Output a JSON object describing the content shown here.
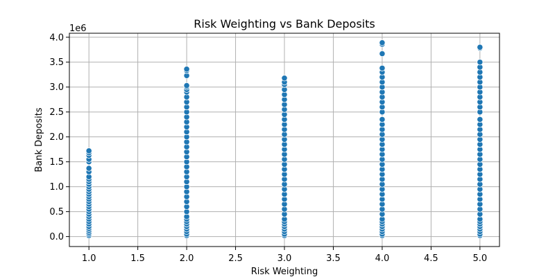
{
  "chart_data": {
    "type": "scatter",
    "title": "Risk Weighting vs Bank Deposits",
    "xlabel": "Risk Weighting",
    "ylabel": "Bank Deposits",
    "y_offset_label": "1e6",
    "xlim": [
      0.8,
      5.2
    ],
    "ylim": [
      -0.2,
      4.08
    ],
    "xticks": [
      "1.0",
      "1.5",
      "2.0",
      "2.5",
      "3.0",
      "3.5",
      "4.0",
      "4.5",
      "5.0"
    ],
    "xtick_values": [
      1.0,
      1.5,
      2.0,
      2.5,
      3.0,
      3.5,
      4.0,
      4.5,
      5.0
    ],
    "yticks": [
      "0.0",
      "0.5",
      "1.0",
      "1.5",
      "2.0",
      "2.5",
      "3.0",
      "3.5",
      "4.0"
    ],
    "ytick_values": [
      0.0,
      0.5,
      1.0,
      1.5,
      2.0,
      2.5,
      3.0,
      3.5,
      4.0
    ],
    "grid": true,
    "marker_color": "#1f77b4",
    "series": [
      {
        "x": 1.0,
        "values": [
          0.02,
          0.05,
          0.08,
          0.12,
          0.16,
          0.2,
          0.25,
          0.3,
          0.35,
          0.4,
          0.45,
          0.5,
          0.55,
          0.6,
          0.65,
          0.7,
          0.75,
          0.8,
          0.85,
          0.9,
          0.95,
          1.0,
          1.05,
          1.1,
          1.15,
          1.2,
          1.3,
          1.37,
          1.5,
          1.55,
          1.63,
          1.68,
          1.72
        ]
      },
      {
        "x": 2.0,
        "values": [
          0.02,
          0.05,
          0.1,
          0.15,
          0.2,
          0.25,
          0.3,
          0.35,
          0.4,
          0.5,
          0.6,
          0.7,
          0.8,
          0.9,
          1.0,
          1.1,
          1.2,
          1.3,
          1.4,
          1.5,
          1.6,
          1.7,
          1.8,
          1.9,
          2.0,
          2.1,
          2.2,
          2.3,
          2.4,
          2.5,
          2.6,
          2.7,
          2.8,
          2.9,
          2.95,
          3.0,
          3.03,
          3.23,
          3.33,
          3.36
        ]
      },
      {
        "x": 3.0,
        "values": [
          0.02,
          0.05,
          0.1,
          0.15,
          0.2,
          0.25,
          0.3,
          0.35,
          0.45,
          0.55,
          0.65,
          0.75,
          0.85,
          0.95,
          1.05,
          1.15,
          1.25,
          1.35,
          1.45,
          1.55,
          1.65,
          1.75,
          1.85,
          1.95,
          2.05,
          2.15,
          2.25,
          2.35,
          2.45,
          2.55,
          2.65,
          2.75,
          2.85,
          2.95,
          3.05,
          3.1,
          3.18
        ]
      },
      {
        "x": 4.0,
        "values": [
          0.02,
          0.05,
          0.1,
          0.15,
          0.2,
          0.25,
          0.3,
          0.35,
          0.45,
          0.55,
          0.65,
          0.75,
          0.85,
          0.95,
          1.05,
          1.15,
          1.25,
          1.35,
          1.45,
          1.55,
          1.65,
          1.75,
          1.85,
          1.95,
          2.05,
          2.15,
          2.25,
          2.35,
          2.5,
          2.6,
          2.7,
          2.8,
          2.9,
          3.0,
          3.1,
          3.2,
          3.3,
          3.38,
          3.67,
          3.86,
          3.89
        ]
      },
      {
        "x": 5.0,
        "values": [
          0.02,
          0.05,
          0.1,
          0.15,
          0.2,
          0.25,
          0.3,
          0.35,
          0.45,
          0.55,
          0.65,
          0.75,
          0.85,
          0.95,
          1.05,
          1.15,
          1.25,
          1.35,
          1.45,
          1.55,
          1.65,
          1.75,
          1.85,
          1.95,
          2.05,
          2.15,
          2.25,
          2.35,
          2.5,
          2.6,
          2.7,
          2.8,
          2.9,
          3.0,
          3.1,
          3.2,
          3.3,
          3.4,
          3.5,
          3.78,
          3.8
        ]
      }
    ]
  }
}
